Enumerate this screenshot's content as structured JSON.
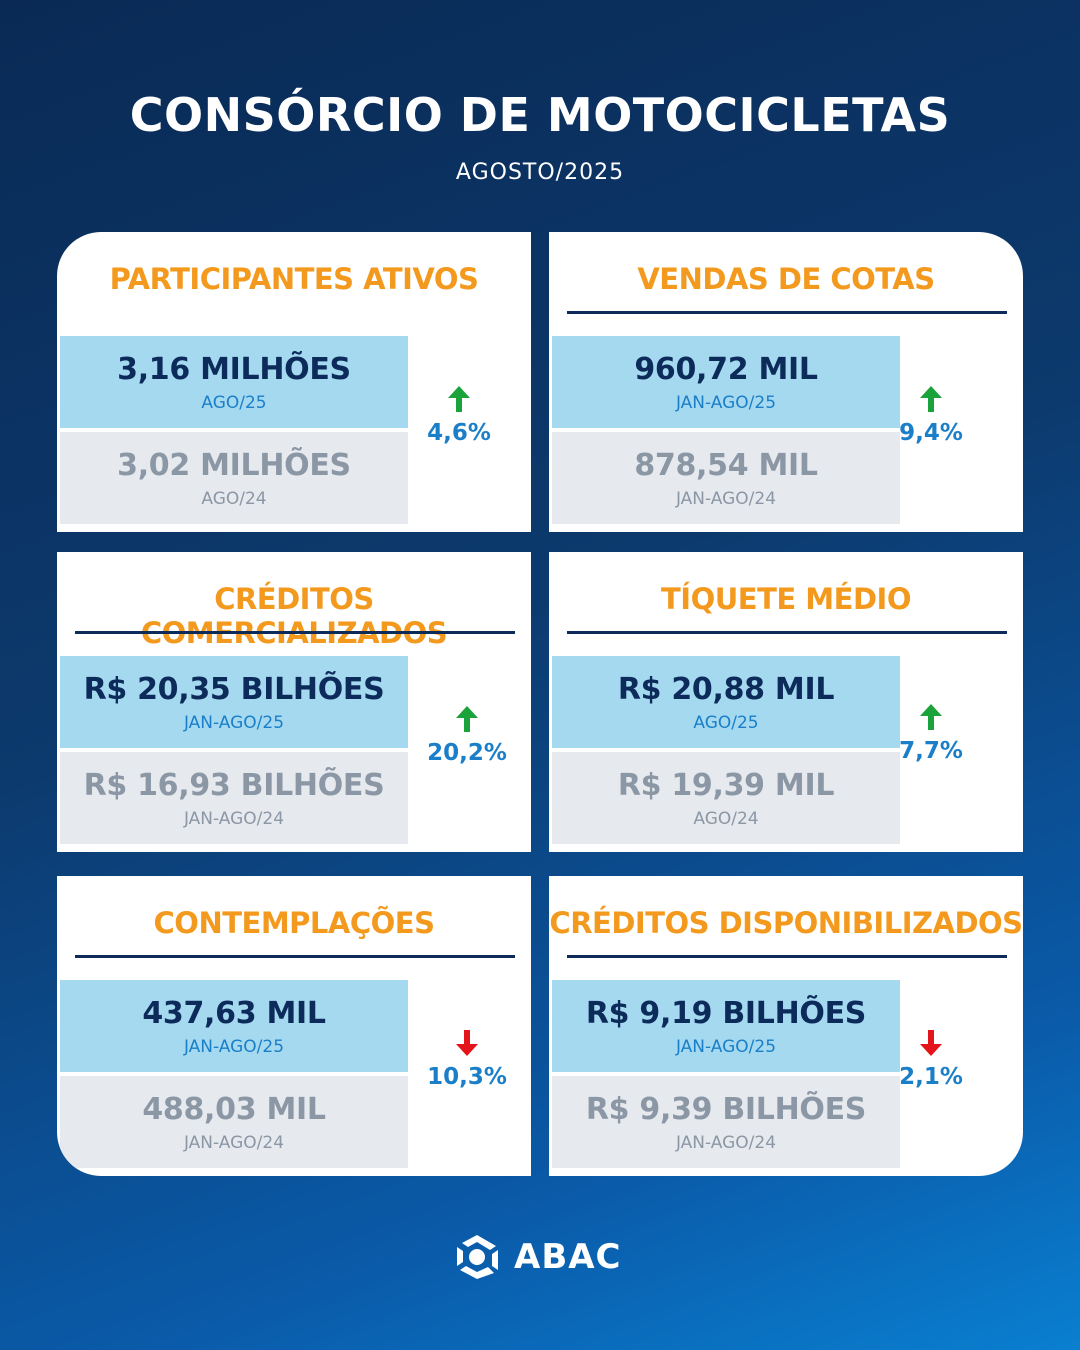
{
  "header": {
    "title": "CONSÓRCIO DE MOTOCICLETAS",
    "subtitle": "AGOSTO/2025"
  },
  "cards": [
    {
      "title": "PARTICIPANTES ATIVOS",
      "current_value": "3,16 MILHÕES",
      "current_period": "AGO/25",
      "previous_value": "3,02 MILHÕES",
      "previous_period": "AGO/24",
      "change": "4,6%",
      "direction": "up"
    },
    {
      "title": "VENDAS DE COTAS",
      "current_value": "960,72 MIL",
      "current_period": "JAN-AGO/25",
      "previous_value": "878,54 MIL",
      "previous_period": "JAN-AGO/24",
      "change": "9,4%",
      "direction": "up"
    },
    {
      "title": "CRÉDITOS COMERCIALIZADOS",
      "current_value": "R$ 20,35 BILHÕES",
      "current_period": "JAN-AGO/25",
      "previous_value": "R$ 16,93 BILHÕES",
      "previous_period": "JAN-AGO/24",
      "change": "20,2%",
      "direction": "up"
    },
    {
      "title": "TÍQUETE MÉDIO",
      "current_value": "R$ 20,88 MIL",
      "current_period": "AGO/25",
      "previous_value": "R$ 19,39 MIL",
      "previous_period": "AGO/24",
      "change": "7,7%",
      "direction": "up"
    },
    {
      "title": "CONTEMPLAÇÕES",
      "current_value": "437,63 MIL",
      "current_period": "JAN-AGO/25",
      "previous_value": "488,03 MIL",
      "previous_period": "JAN-AGO/24",
      "change": "10,3%",
      "direction": "down"
    },
    {
      "title": "CRÉDITOS DISPONIBILIZADOS",
      "current_value": "R$ 9,19 BILHÕES",
      "current_period": "JAN-AGO/25",
      "previous_value": "R$ 9,39 BILHÕES",
      "previous_period": "JAN-AGO/24",
      "change": "2,1%",
      "direction": "down"
    }
  ],
  "colors": {
    "up": "#1aa33a",
    "down": "#e3141b",
    "title": "#f39a1e",
    "navy": "#0c2b5a"
  },
  "logo": {
    "text": "ABAC",
    "icon": "abac-logo-icon"
  }
}
